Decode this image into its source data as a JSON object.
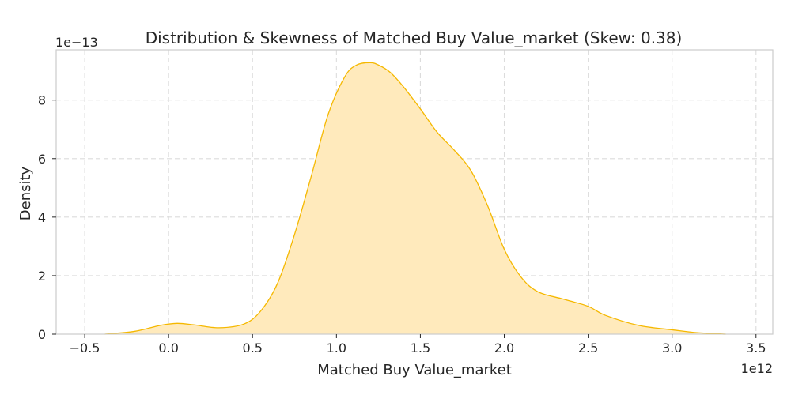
{
  "chart_data": {
    "type": "area",
    "title": "Distribution & Skewness of Matched Buy Value_market (Skew: 0.38)",
    "xlabel": "Matched Buy Value_market",
    "ylabel": "Density",
    "x_offset_label": "1e12",
    "y_offset_label": "1e−13",
    "xlim": [
      -0.67,
      3.6
    ],
    "ylim": [
      0,
      9.72
    ],
    "x_ticks": [
      "−0.5",
      "0.0",
      "0.5",
      "1.0",
      "1.5",
      "2.0",
      "2.5",
      "3.0",
      "3.5"
    ],
    "x_tick_values": [
      -0.5,
      0.0,
      0.5,
      1.0,
      1.5,
      2.0,
      2.5,
      3.0,
      3.5
    ],
    "y_ticks": [
      "0",
      "2",
      "4",
      "6",
      "8"
    ],
    "y_tick_values": [
      0,
      2,
      4,
      6,
      8
    ],
    "grid": true,
    "series": [
      {
        "color": "#f5b800",
        "fill": "#ffeabc",
        "x": [
          -0.38,
          -0.2,
          -0.05,
          0.05,
          0.15,
          0.3,
          0.45,
          0.55,
          0.65,
          0.75,
          0.85,
          0.95,
          1.05,
          1.12,
          1.2,
          1.25,
          1.32,
          1.4,
          1.5,
          1.6,
          1.7,
          1.8,
          1.9,
          2.0,
          2.1,
          2.2,
          2.35,
          2.5,
          2.6,
          2.8,
          3.0,
          3.15,
          3.32
        ],
        "y": [
          0.0,
          0.1,
          0.3,
          0.37,
          0.32,
          0.22,
          0.35,
          0.8,
          1.75,
          3.4,
          5.4,
          7.5,
          8.8,
          9.2,
          9.28,
          9.2,
          8.95,
          8.45,
          7.7,
          6.9,
          6.3,
          5.6,
          4.4,
          2.9,
          1.95,
          1.45,
          1.2,
          0.95,
          0.65,
          0.3,
          0.15,
          0.05,
          0.0
        ]
      }
    ]
  }
}
